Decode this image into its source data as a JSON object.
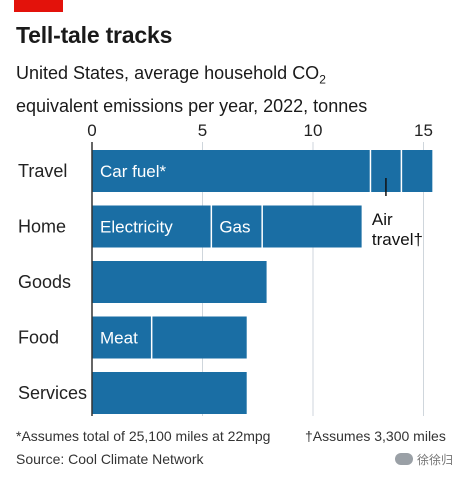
{
  "title": "Tell-tale tracks",
  "subtitle_line1_pre": "United States, average household CO",
  "subtitle_line1_sub": "2",
  "subtitle_line2": "equivalent emissions per year, 2022, tonnes",
  "footnote_asterisk": "*Assumes total of 25,100 miles at 22mpg",
  "footnote_dagger": "†Assumes 3,300 miles",
  "source": "Source: Cool Climate Network",
  "watermark": "徐徐归",
  "colors": {
    "bar": "#1a6ea4",
    "divider": "#ffffff",
    "grid": "#cfd6dc",
    "axis": "#333333",
    "brand_red": "#e3120b"
  },
  "chart_data": {
    "type": "bar",
    "orientation": "horizontal",
    "stacked": true,
    "xlim": [
      0,
      16
    ],
    "xticks": [
      0,
      5,
      10,
      15
    ],
    "categories": [
      "Travel",
      "Home",
      "Goods",
      "Food",
      "Services"
    ],
    "segments": [
      [
        {
          "label": "Car fuel*",
          "value": 12.6
        },
        {
          "label": "",
          "value": 1.4
        },
        {
          "label": "",
          "value": 1.4
        }
      ],
      [
        {
          "label": "Electricity",
          "value": 5.4
        },
        {
          "label": "Gas",
          "value": 2.3
        },
        {
          "label": "",
          "value": 4.5
        }
      ],
      [
        {
          "label": "",
          "value": 7.9
        }
      ],
      [
        {
          "label": "Meat",
          "value": 2.7
        },
        {
          "label": "",
          "value": 4.3
        }
      ],
      [
        {
          "label": "",
          "value": 7.0
        }
      ]
    ],
    "totals": [
      15.4,
      12.2,
      7.9,
      7.0,
      7.0
    ],
    "annotation": {
      "text_line1": "Air",
      "text_line2": "travel†",
      "category": "Travel",
      "segment_index": 1
    }
  }
}
